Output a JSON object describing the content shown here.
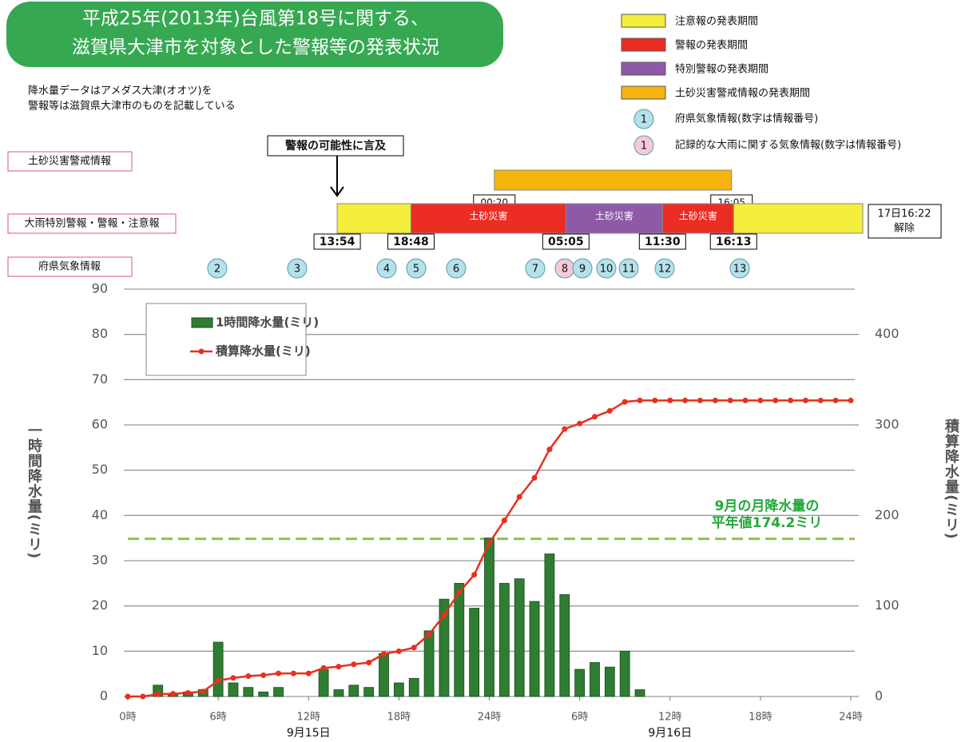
{
  "header": {
    "title_lines": [
      "平成25年(2013年)台風第18号に関する、",
      "滋賀県大津市を対象とした警報等の発表状況"
    ],
    "notes": [
      "降水量データはアメダス大津(オオツ)を",
      "警報等は滋賀県大津市のものを記載している"
    ]
  },
  "legend": [
    {
      "label": "注意報の発表期間",
      "color": "#f4ee3c"
    },
    {
      "label": "警報の発表期間",
      "color": "#ec2d24"
    },
    {
      "label": "特別警報の発表期間",
      "color": "#8e5aa8"
    },
    {
      "label": "土砂災害警戒情報の発表期間",
      "color": "#f6b40f"
    }
  ],
  "circle_legend": [
    {
      "number": "1",
      "label": "府県気象情報(数字は情報番号)",
      "color": "#b5e1ea"
    },
    {
      "number": "1",
      "label": "記録的な大雨に関する気象情報(数字は情報番号)",
      "color": "#f6c9d8"
    }
  ],
  "row_labels": {
    "sediment": "土砂災害警戒情報",
    "warning": "大雨特別警報・警報・注意報",
    "info": "府県気象情報"
  },
  "callout": "警報の可能性に言及",
  "sediment_period": {
    "times": [
      "00:20",
      "16:05"
    ],
    "color": "#f6b40f"
  },
  "warning_times": [
    "13:54",
    "18:48",
    "05:05",
    "11:30",
    "16:13"
  ],
  "warning_segments": [
    {
      "color": "#f4ee3c"
    },
    {
      "color": "#ec2d24",
      "label": "土砂災害"
    },
    {
      "color": "#8e5aa8",
      "label": "土砂災害"
    },
    {
      "color": "#ec2d24",
      "label": "土砂災害"
    },
    {
      "color": "#f4ee3c"
    }
  ],
  "release": [
    "17日16:22",
    "解除"
  ],
  "info_circles": [
    {
      "label": "2",
      "color": "#b5e1ea"
    },
    {
      "label": "3",
      "color": "#b5e1ea"
    },
    {
      "label": "4",
      "color": "#b5e1ea"
    },
    {
      "label": "5",
      "color": "#b5e1ea"
    },
    {
      "label": "6",
      "color": "#b5e1ea"
    },
    {
      "label": "7",
      "color": "#b5e1ea"
    },
    {
      "label": "8",
      "color": "#f6c9d8"
    },
    {
      "label": "9",
      "color": "#b5e1ea"
    },
    {
      "label": "10",
      "color": "#b5e1ea"
    },
    {
      "label": "11",
      "color": "#b5e1ea"
    },
    {
      "label": "12",
      "color": "#b5e1ea"
    },
    {
      "label": "13",
      "color": "#b5e1ea"
    }
  ],
  "chart_data": {
    "type": "bar_line",
    "x": [
      0,
      1,
      2,
      3,
      4,
      5,
      6,
      7,
      8,
      9,
      10,
      11,
      12,
      13,
      14,
      15,
      16,
      17,
      18,
      19,
      20,
      21,
      22,
      23,
      24,
      25,
      26,
      27,
      28,
      29,
      30,
      31,
      32,
      33,
      34,
      35,
      36,
      37,
      38,
      39,
      40,
      41,
      42,
      43,
      44,
      45,
      46,
      47,
      48
    ],
    "xlim": [
      0,
      48
    ],
    "xticks": [
      {
        "value": 0,
        "label": "0時"
      },
      {
        "value": 6,
        "label": "6時"
      },
      {
        "value": 12,
        "label": "12時"
      },
      {
        "value": 18,
        "label": "18時"
      },
      {
        "value": 24,
        "label": "24時"
      },
      {
        "value": 30,
        "label": "6時"
      },
      {
        "value": 36,
        "label": "12時"
      },
      {
        "value": 42,
        "label": "18時"
      },
      {
        "value": 48,
        "label": "24時"
      }
    ],
    "date_labels": [
      {
        "value": 12,
        "label": "9月15日"
      },
      {
        "value": 36,
        "label": "9月16日"
      }
    ],
    "series": [
      {
        "name": "1時間降水量(ミリ)",
        "type": "bar",
        "color": "#2e7d32",
        "values": [
          0,
          0,
          2.5,
          0.5,
          1,
          1.5,
          12,
          3,
          2,
          1,
          2,
          0,
          0,
          6,
          1.5,
          2.5,
          2,
          9.5,
          3,
          4,
          14.5,
          21.5,
          25,
          19.5,
          35,
          25,
          26,
          21,
          31.5,
          22.5,
          6,
          7.5,
          6.5,
          10,
          1.5,
          0,
          0,
          0,
          0,
          0,
          0,
          0,
          0,
          0,
          0,
          0,
          0,
          0,
          0
        ]
      },
      {
        "name": "積算降水量(ミリ)",
        "type": "line",
        "axis": "y2",
        "color": "#e8301e",
        "values": [
          0,
          0,
          2.5,
          3,
          4,
          5.5,
          17.5,
          20.5,
          22.5,
          23.5,
          25.5,
          25.5,
          25.5,
          31.5,
          33,
          35.5,
          37.5,
          47,
          50,
          54,
          68.5,
          90,
          115,
          134.5,
          169.5,
          194.5,
          220.5,
          241.5,
          273,
          295.5,
          301.5,
          309,
          315.5,
          325.5,
          327,
          327,
          327,
          327,
          327,
          327,
          327,
          327,
          327,
          327,
          327,
          327,
          327,
          327,
          327
        ]
      }
    ],
    "ylim": [
      0,
      90
    ],
    "yticks": [
      0,
      10,
      20,
      30,
      40,
      50,
      60,
      70,
      80,
      90
    ],
    "y2lim": [
      0,
      450
    ],
    "y2ticks": [
      0,
      100,
      200,
      300,
      400
    ],
    "ylabel": "一時間降水量(ミリ)",
    "y2label": "積算降水量(ミリ)",
    "grid": true,
    "reference_line": {
      "value": 174.2,
      "axis": "y2",
      "color": "#8bc34a",
      "label": [
        "9月の月降水量の",
        "平年値174.2ミリ"
      ]
    }
  }
}
